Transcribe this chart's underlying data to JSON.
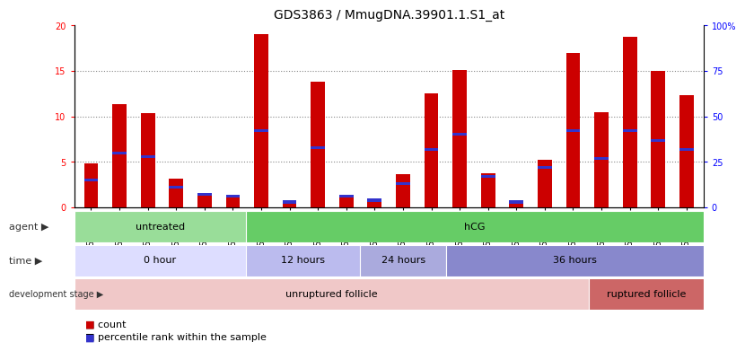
{
  "title": "GDS3863 / MmugDNA.39901.1.S1_at",
  "samples": [
    "GSM563219",
    "GSM563220",
    "GSM563221",
    "GSM563222",
    "GSM563223",
    "GSM563224",
    "GSM563225",
    "GSM563226",
    "GSM563227",
    "GSM563228",
    "GSM563229",
    "GSM563230",
    "GSM563231",
    "GSM563232",
    "GSM563233",
    "GSM563234",
    "GSM563235",
    "GSM563236",
    "GSM563237",
    "GSM563238",
    "GSM563239",
    "GSM563240"
  ],
  "counts": [
    4.8,
    11.3,
    10.4,
    3.2,
    1.5,
    1.3,
    19.0,
    0.7,
    13.8,
    1.4,
    0.8,
    3.7,
    12.5,
    15.1,
    3.8,
    0.7,
    5.2,
    17.0,
    10.5,
    18.7,
    15.0,
    12.3
  ],
  "percentiles": [
    15,
    30,
    28,
    11,
    7,
    6,
    42,
    3,
    33,
    6,
    4,
    13,
    32,
    40,
    17,
    3,
    22,
    42,
    27,
    42,
    37,
    32
  ],
  "ylim_left": [
    0,
    20
  ],
  "ylim_right": [
    0,
    100
  ],
  "yticks_left": [
    0,
    5,
    10,
    15,
    20
  ],
  "yticks_right": [
    0,
    25,
    50,
    75,
    100
  ],
  "bar_color": "#cc0000",
  "marker_color": "#3333cc",
  "bar_width": 0.5,
  "agent_groups": [
    {
      "label": "untreated",
      "start": 0,
      "end": 6,
      "color": "#99dd99"
    },
    {
      "label": "hCG",
      "start": 6,
      "end": 22,
      "color": "#66cc66"
    }
  ],
  "time_groups": [
    {
      "label": "0 hour",
      "start": 0,
      "end": 6,
      "color": "#ddddff"
    },
    {
      "label": "12 hours",
      "start": 6,
      "end": 10,
      "color": "#bbbbee"
    },
    {
      "label": "24 hours",
      "start": 10,
      "end": 13,
      "color": "#aaaadd"
    },
    {
      "label": "36 hours",
      "start": 13,
      "end": 22,
      "color": "#8888cc"
    }
  ],
  "dev_groups": [
    {
      "label": "unruptured follicle",
      "start": 0,
      "end": 18,
      "color": "#f0c8c8"
    },
    {
      "label": "ruptured follicle",
      "start": 18,
      "end": 22,
      "color": "#cc6666"
    }
  ],
  "legend_items": [
    {
      "label": "count",
      "color": "#cc0000"
    },
    {
      "label": "percentile rank within the sample",
      "color": "#3333cc"
    }
  ],
  "grid_color": "#888888",
  "title_fontsize": 10,
  "tick_fontsize": 7,
  "label_fontsize": 8,
  "panel_label_fontsize": 8
}
